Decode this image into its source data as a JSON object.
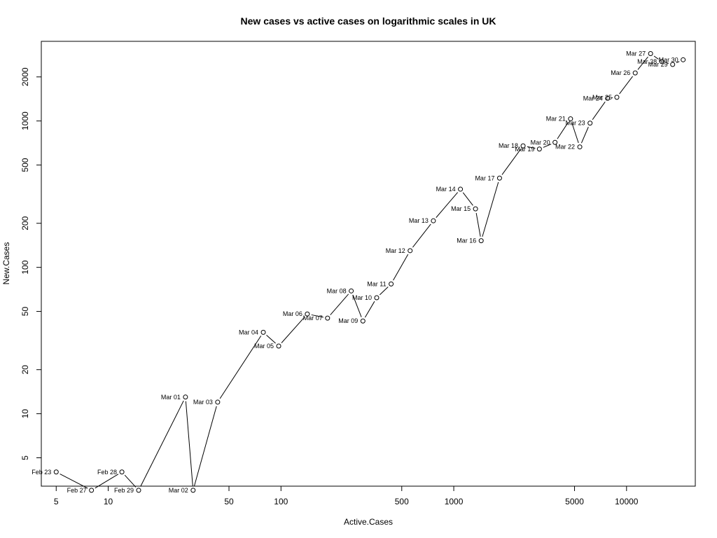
{
  "chart_data": {
    "type": "scatter",
    "title": "New cases vs active cases on logarithmic scales in UK",
    "xlabel": "Active.Cases",
    "ylabel": "New.Cases",
    "x_scale": "log",
    "y_scale": "log",
    "xlim": [
      4.1,
      25000
    ],
    "ylim": [
      3.2,
      3500
    ],
    "x_ticks": [
      5,
      10,
      50,
      100,
      500,
      1000,
      5000,
      10000
    ],
    "y_ticks": [
      5,
      10,
      20,
      50,
      100,
      200,
      500,
      1000,
      2000
    ],
    "grid": false,
    "connected": true,
    "points": [
      {
        "label": "Feb 23",
        "x": 5,
        "y": 4
      },
      {
        "label": "Feb 27",
        "x": 8,
        "y": 3
      },
      {
        "label": "Feb 28",
        "x": 12,
        "y": 4
      },
      {
        "label": "Feb 29",
        "x": 15,
        "y": 3
      },
      {
        "label": "Mar 01",
        "x": 28,
        "y": 13
      },
      {
        "label": "Mar 02",
        "x": 31,
        "y": 3
      },
      {
        "label": "Mar 03",
        "x": 43,
        "y": 12
      },
      {
        "label": "Mar 04",
        "x": 79,
        "y": 36
      },
      {
        "label": "Mar 05",
        "x": 97,
        "y": 29
      },
      {
        "label": "Mar 06",
        "x": 142,
        "y": 48
      },
      {
        "label": "Mar 07",
        "x": 186,
        "y": 45
      },
      {
        "label": "Mar 08",
        "x": 255,
        "y": 69
      },
      {
        "label": "Mar 09",
        "x": 298,
        "y": 43
      },
      {
        "label": "Mar 10",
        "x": 358,
        "y": 62
      },
      {
        "label": "Mar 11",
        "x": 434,
        "y": 77
      },
      {
        "label": "Mar 12",
        "x": 559,
        "y": 130
      },
      {
        "label": "Mar 13",
        "x": 762,
        "y": 208
      },
      {
        "label": "Mar 14",
        "x": 1093,
        "y": 342
      },
      {
        "label": "Mar 15",
        "x": 1336,
        "y": 251
      },
      {
        "label": "Mar 16",
        "x": 1441,
        "y": 152
      },
      {
        "label": "Mar 17",
        "x": 1841,
        "y": 407
      },
      {
        "label": "Mar 18",
        "x": 2519,
        "y": 676
      },
      {
        "label": "Mar 19",
        "x": 3131,
        "y": 643
      },
      {
        "label": "Mar 20",
        "x": 3855,
        "y": 714
      },
      {
        "label": "Mar 21",
        "x": 4741,
        "y": 1035
      },
      {
        "label": "Mar 22",
        "x": 5364,
        "y": 665
      },
      {
        "label": "Mar 23",
        "x": 6149,
        "y": 967
      },
      {
        "label": "Mar 24",
        "x": 7767,
        "y": 1427
      },
      {
        "label": "Mar 25",
        "x": 8788,
        "y": 1452
      },
      {
        "label": "Mar 26",
        "x": 11227,
        "y": 2129
      },
      {
        "label": "Mar 27",
        "x": 13777,
        "y": 2885
      },
      {
        "label": "Mar 28",
        "x": 16004,
        "y": 2546
      },
      {
        "label": "Mar 29",
        "x": 18491,
        "y": 2433
      },
      {
        "label": "Mar 30",
        "x": 21261,
        "y": 2619
      }
    ]
  }
}
